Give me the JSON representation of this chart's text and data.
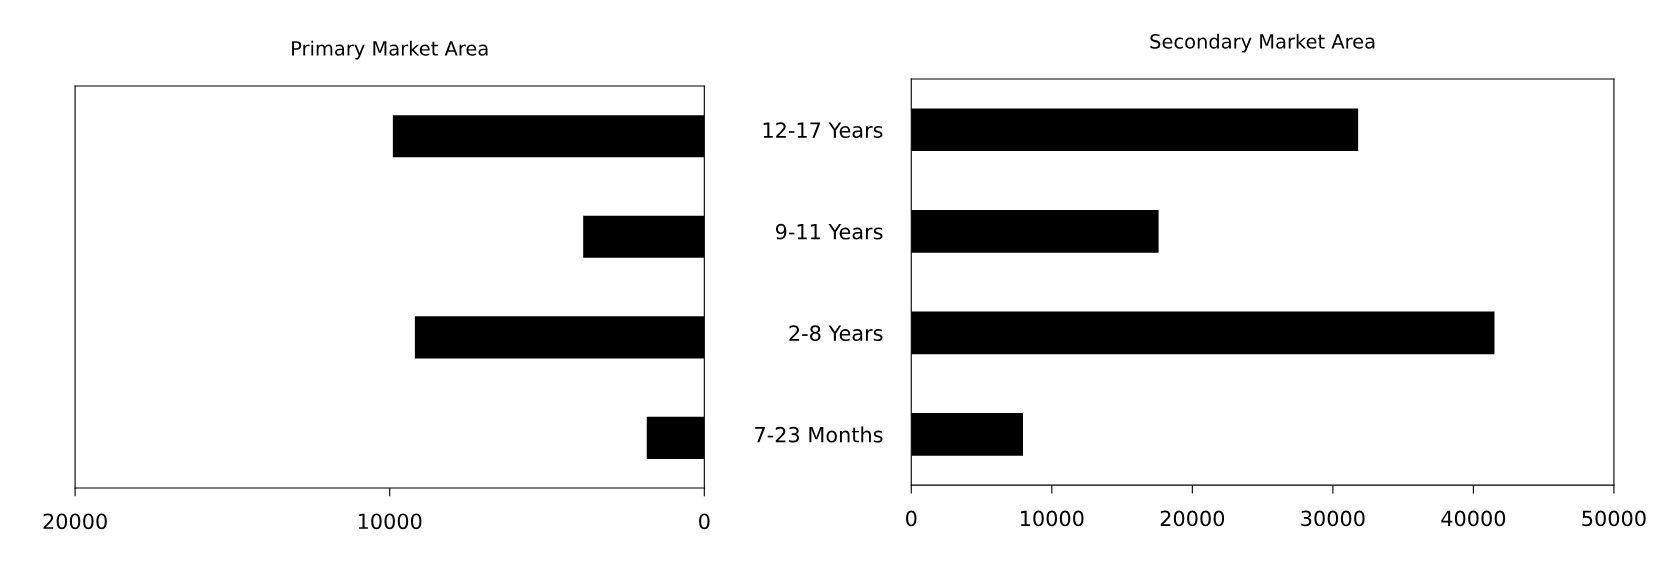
{
  "chart_data": [
    {
      "type": "bar",
      "orientation": "horizontal",
      "title": "Primary Market Area",
      "categories": [
        null,
        null,
        null,
        null
      ],
      "values": [
        9900,
        3850,
        9200,
        1830
      ],
      "color": "#000000",
      "xlim": [
        20000,
        0
      ],
      "xticks": [
        20000,
        10000,
        0
      ],
      "tick_labels": "x",
      "grid": false
    },
    {
      "type": "bar",
      "orientation": "horizontal",
      "title": "Secondary Market Area",
      "categories": [
        "12-17 Years",
        "9-11 Years",
        "2-8 Years",
        "7-23 Months"
      ],
      "values": [
        31800,
        17600,
        41500,
        7950
      ],
      "color": "#000000",
      "xlim": [
        0,
        50000
      ],
      "xticks": [
        0,
        10000,
        20000,
        30000,
        40000,
        50000
      ],
      "grid": false
    }
  ]
}
